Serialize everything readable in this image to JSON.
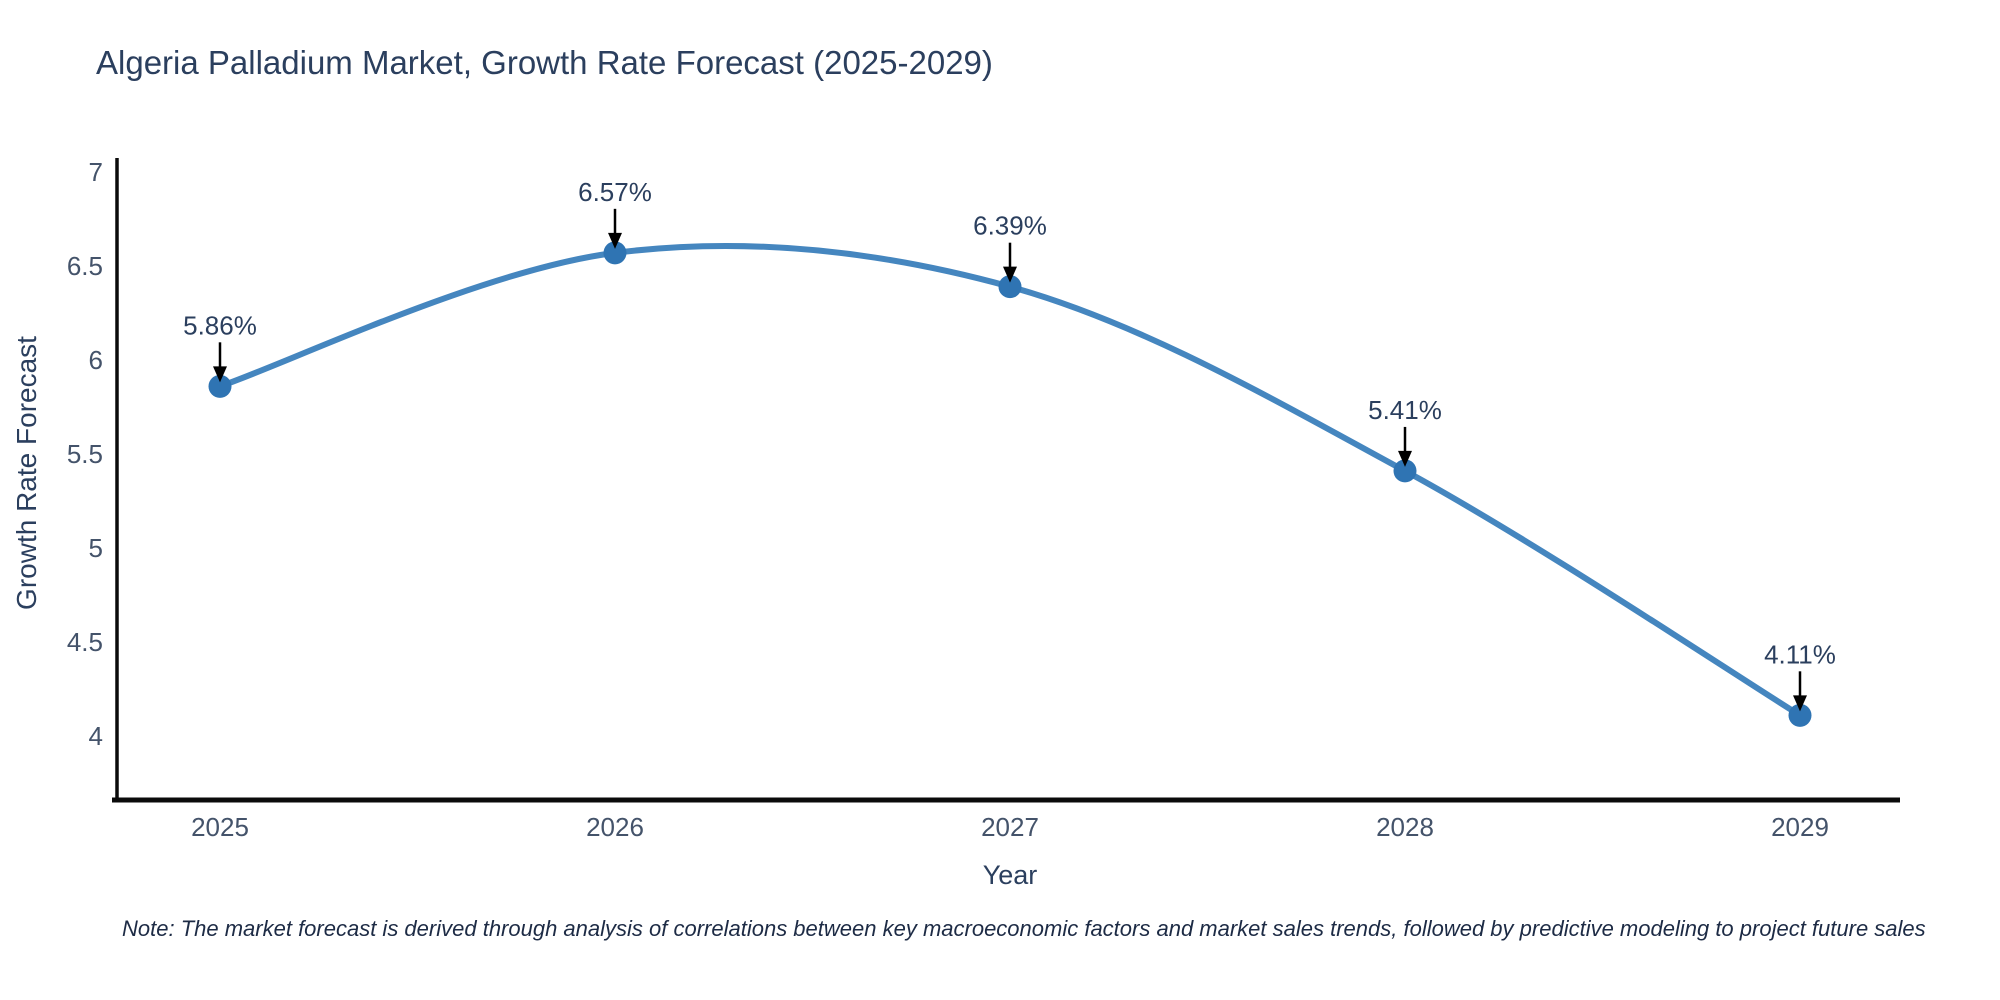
{
  "title": "Algeria Palladium Market, Growth Rate Forecast (2025-2029)",
  "note": "Note: The market forecast is derived through analysis of correlations between key macroeconomic factors and market sales trends, followed by predictive modeling to project future sales",
  "chart_data": {
    "type": "line",
    "title": "Algeria Palladium Market, Growth Rate Forecast (2025-2029)",
    "xlabel": "Year",
    "ylabel": "Growth Rate Forecast",
    "x": [
      2025,
      2026,
      2027,
      2028,
      2029
    ],
    "values": [
      5.86,
      6.57,
      6.39,
      5.41,
      4.11
    ],
    "point_labels": [
      "5.86%",
      "6.57%",
      "6.39%",
      "5.41%",
      "4.11%"
    ],
    "xticks": [
      "2025",
      "2026",
      "2027",
      "2028",
      "2029"
    ],
    "yticks": [
      7,
      6.5,
      6,
      5.5,
      5,
      4.5,
      4
    ],
    "ylim": [
      3.7,
      7.06
    ],
    "grid": false,
    "legend": "none",
    "line_shape": "spline",
    "colors": {
      "line": "#4586bf",
      "marker": "#2f74b3",
      "axis": "#0b0b0b",
      "heading_text": "#2b3f5e",
      "tick_text": "#44536a",
      "annotation_arrow": "#000000"
    }
  }
}
